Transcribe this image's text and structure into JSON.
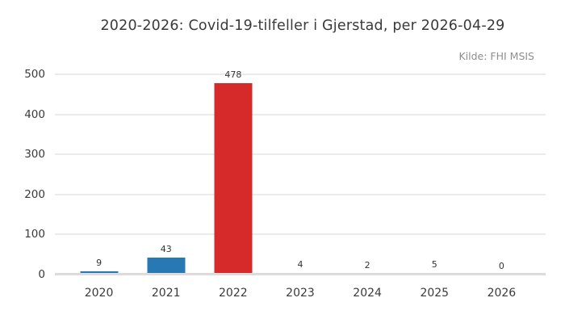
{
  "header": {
    "title": "2020-2026: Covid-19-tilfeller i Gjerstad, per 2026-04-29",
    "source": "Kilde: FHI MSIS"
  },
  "colors": {
    "bar_blue": "#2878b4",
    "bar_red": "#d62929",
    "gridline": "#ebebeb",
    "baseline": "#dcdcdc",
    "title_text": "#3a3a3a",
    "tick_text": "#3a3a3a",
    "value_text": "#333333",
    "source_text": "#8e8e8e"
  },
  "chart_data": {
    "type": "bar",
    "title": "2020-2026: Covid-19-tilfeller i Gjerstad, per 2026-04-29",
    "annotation": "Kilde: FHI MSIS",
    "categories": [
      "2020",
      "2021",
      "2022",
      "2023",
      "2024",
      "2025",
      "2026"
    ],
    "values": [
      9,
      43,
      478,
      4,
      2,
      5,
      0
    ],
    "bar_colors": [
      "#2878b4",
      "#2878b4",
      "#d62929",
      "#2878b4",
      "#2878b4",
      "#2878b4",
      "#2878b4"
    ],
    "value_labels": [
      "9",
      "43",
      "478",
      "4",
      "2",
      "5",
      "0"
    ],
    "xlabel": "",
    "ylabel": "",
    "ylim": [
      0,
      500
    ],
    "yticks": [
      0,
      100,
      200,
      300,
      400,
      500
    ],
    "grid": true,
    "legend": "none"
  }
}
